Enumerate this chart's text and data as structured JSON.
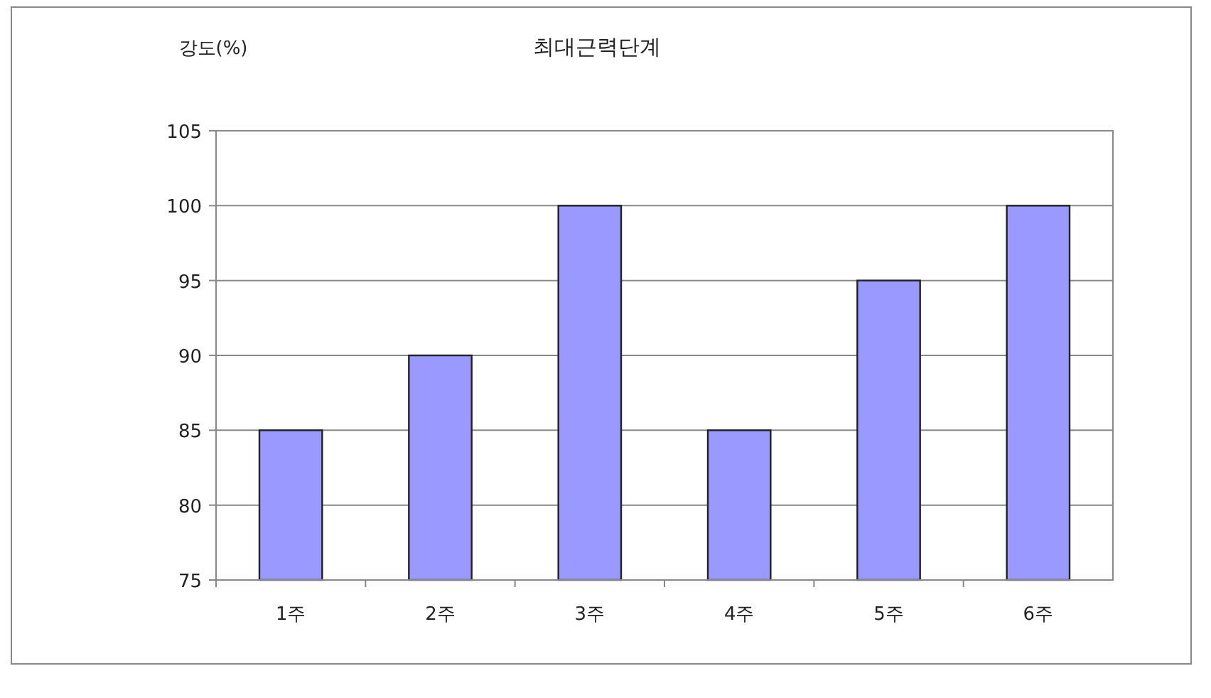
{
  "chart_data": {
    "type": "bar",
    "title": "최대근력단계",
    "ylabel": "강도(%)",
    "categories": [
      "1주",
      "2주",
      "3주",
      "4주",
      "5주",
      "6주"
    ],
    "values": [
      85,
      90,
      100,
      85,
      95,
      100
    ],
    "color": "#9999ff",
    "ylim": [
      75,
      105
    ],
    "yticks": [
      75,
      80,
      85,
      90,
      95,
      100,
      105
    ],
    "grid": "y"
  }
}
